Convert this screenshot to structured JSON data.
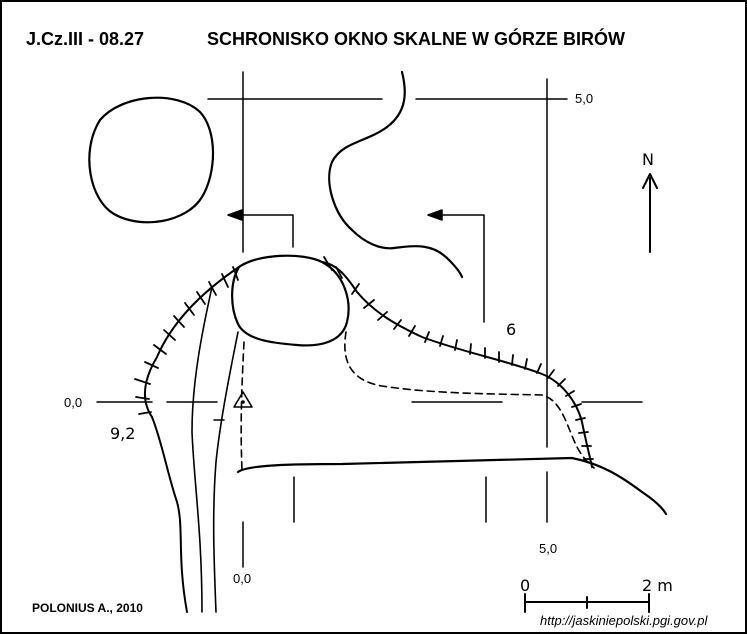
{
  "header": {
    "code": "J.Cz.III - 08.27",
    "name": "SCHRONISKO OKNO SKALNE W GÓRZE BIRÓW"
  },
  "plan": {
    "north_label": "N",
    "grid_labels": {
      "x_origin": "0,0",
      "x_five": "5,0",
      "y_origin": "0,0",
      "y_five": "5,0"
    },
    "height_labels": {
      "entrance_left": "9,2",
      "ceiling_right": "6"
    }
  },
  "scale_bar": {
    "start_label": "0",
    "end_label": "2 m"
  },
  "footer": {
    "author": "POLONIUS A., 2010",
    "url": "http://jaskiniepolski.pgi.gov.pl"
  },
  "colors": {
    "ink": "#000000",
    "background": "#ffffff"
  }
}
